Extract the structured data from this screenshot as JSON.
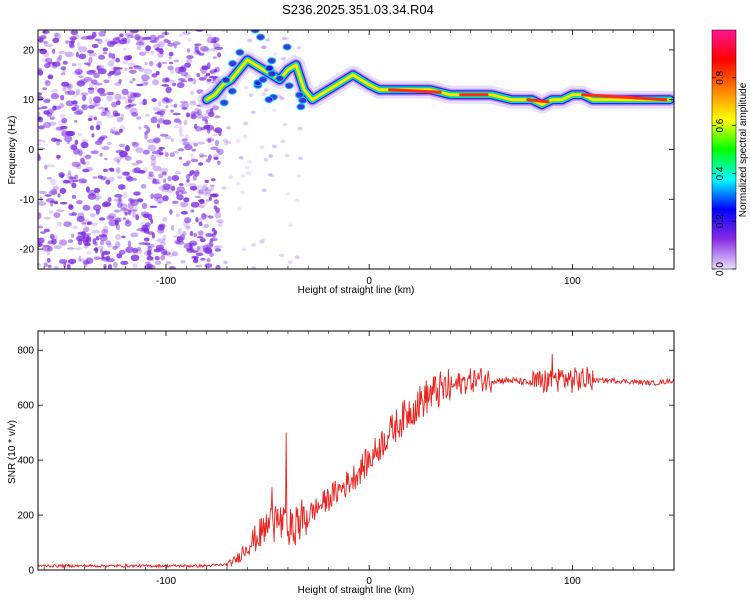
{
  "title": "S236.2025.351.03.34.R04",
  "colors": {
    "snr_line": "#e8231f",
    "frame": "#000000",
    "colorbar_stops": [
      "#e9e0fb",
      "#8a2be2",
      "#0000ff",
      "#00ffff",
      "#00ff00",
      "#ffff00",
      "#ff7f00",
      "#ff0000",
      "#ff1493"
    ],
    "noise_speckle": "#7a26e0"
  },
  "chart_data": [
    {
      "type": "heatmap",
      "name": "spectrogram",
      "xlabel": "Height of straight line (km)",
      "ylabel": "Frequency (Hz)",
      "xlim": [
        -163,
        150
      ],
      "ylim": [
        -24,
        24
      ],
      "x_ticks": [
        -100,
        0,
        100
      ],
      "y_ticks": [
        -20,
        -10,
        0,
        10,
        20
      ],
      "colorbar": {
        "label": "Normalized spectral amplitude",
        "range": [
          0,
          1
        ],
        "ticks": [
          0.0,
          0.2,
          0.4,
          0.6,
          0.8
        ]
      },
      "ridge": {
        "x": [
          -80,
          -76,
          -72,
          -68,
          -64,
          -60,
          -56,
          -52,
          -48,
          -44,
          -40,
          -36,
          -32,
          -28,
          -24,
          -20,
          -16,
          -12,
          -8,
          -4,
          0,
          5,
          10,
          15,
          20,
          25,
          30,
          40,
          50,
          60,
          70,
          80,
          85,
          90,
          95,
          100,
          105,
          110,
          120,
          130,
          140,
          148
        ],
        "y": [
          10,
          11,
          13,
          14,
          16,
          18,
          17,
          16,
          15,
          14,
          16,
          17,
          12,
          10,
          11,
          12,
          13,
          14,
          15,
          14,
          13,
          12,
          12,
          12,
          12,
          12,
          12,
          11,
          11,
          11,
          10,
          10,
          9,
          10,
          10,
          11,
          11,
          10,
          10,
          10,
          10,
          10
        ]
      }
    },
    {
      "type": "line",
      "name": "snr",
      "xlabel": "Height of straight line (km)",
      "ylabel": "SNR (10 * v/v)",
      "xlim": [
        -163,
        150
      ],
      "ylim": [
        0,
        870
      ],
      "x_ticks": [
        -100,
        0,
        100
      ],
      "y_ticks": [
        0,
        200,
        400,
        600,
        800
      ],
      "envelope": {
        "x": [
          -163,
          -80,
          -70,
          -65,
          -60,
          -55,
          -50,
          -45,
          -40,
          -35,
          -30,
          -25,
          -20,
          -15,
          -10,
          -5,
          0,
          5,
          10,
          15,
          20,
          25,
          30,
          35,
          40,
          45,
          50,
          55,
          60,
          65,
          70,
          80,
          90,
          95,
          100,
          105,
          110,
          120,
          130,
          140,
          150
        ],
        "y": [
          15,
          15,
          20,
          40,
          90,
          120,
          160,
          180,
          150,
          170,
          200,
          230,
          260,
          290,
          320,
          360,
          400,
          450,
          500,
          540,
          580,
          610,
          640,
          655,
          665,
          680,
          690,
          695,
          690,
          690,
          690,
          680,
          690,
          700,
          690,
          695,
          690,
          690,
          685,
          680,
          690
        ]
      }
    }
  ]
}
